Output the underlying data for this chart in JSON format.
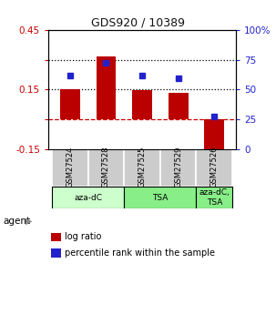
{
  "title": "GDS920 / 10389",
  "samples": [
    "GSM27524",
    "GSM27528",
    "GSM27525",
    "GSM27529",
    "GSM27526"
  ],
  "log_ratios": [
    0.15,
    0.315,
    0.145,
    0.135,
    -0.16
  ],
  "percentile_ranks": [
    0.62,
    0.72,
    0.62,
    0.595,
    0.27
  ],
  "ylim_left": [
    -0.15,
    0.45
  ],
  "ylim_right": [
    0.0,
    1.0
  ],
  "yticks_left": [
    -0.15,
    0.0,
    0.15,
    0.3,
    0.45
  ],
  "ytick_labels_left": [
    "-0.15",
    "",
    "0.15",
    "",
    "0.45"
  ],
  "yticks_right": [
    0.0,
    0.25,
    0.5,
    0.75,
    1.0
  ],
  "ytick_labels_right": [
    "0",
    "25",
    "50",
    "75",
    "100%"
  ],
  "hline_dotted": [
    0.15,
    0.3
  ],
  "hline_dashed": 0.0,
  "bar_color": "#bb0000",
  "dot_color": "#2222cc",
  "bar_width": 0.55,
  "agent_label": "agent",
  "legend_log_ratio": "log ratio",
  "legend_percentile": "percentile rank within the sample",
  "title_color": "#111111",
  "left_axis_color": "#cc0000",
  "right_axis_color": "#2222cc",
  "group_aza_color": "#ccffcc",
  "group_tsa_color": "#88ee88",
  "sample_box_color": "#cccccc"
}
